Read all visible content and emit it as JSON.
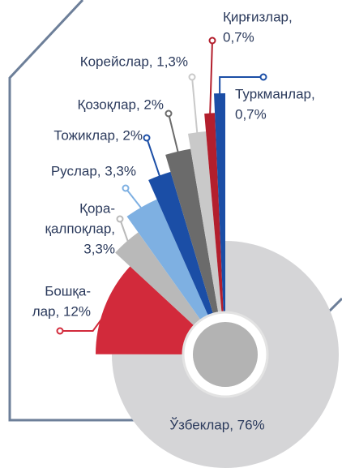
{
  "chart_data": {
    "type": "pie",
    "labels": [
      [
        "Ўзбеклар, 76%"
      ],
      [
        "Бошқа-",
        "лар, 12%"
      ],
      [
        "Қора-",
        "қалпоқлар,",
        "3,3%"
      ],
      [
        "Руслар, 3,3%"
      ],
      [
        "Тожиклар, 2%"
      ],
      [
        "Қозоқлар, 2%"
      ],
      [
        "Корейслар, 1,3%"
      ],
      [
        "Қирғизлар,",
        "0,7%"
      ],
      [
        "Туркманлар,",
        "0,7%"
      ]
    ],
    "values": [
      76,
      12,
      3.3,
      3.3,
      2,
      2,
      1.3,
      0.7,
      0.7
    ],
    "colors": [
      "#d5d5d7",
      "#d22a3b",
      "#b9b9b9",
      "#7eb0e2",
      "#1b4ea6",
      "#6b6b6b",
      "#c9c9c9",
      "#b31f2d",
      "#1b4ea6"
    ]
  }
}
